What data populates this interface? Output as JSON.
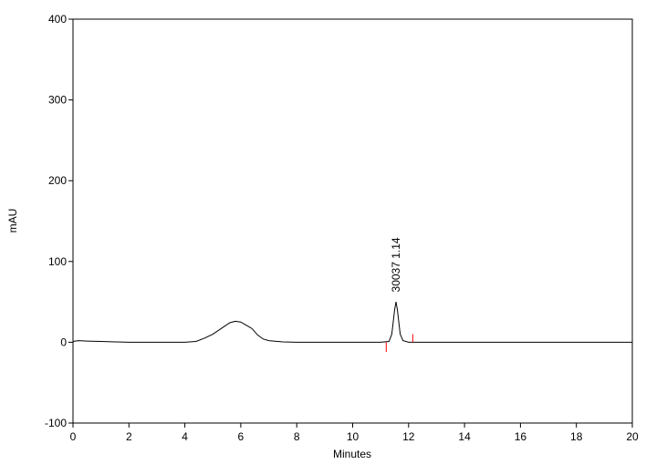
{
  "chart_data": {
    "type": "line",
    "x_label": "Minutes",
    "y_label": "mAU",
    "xlim": [
      0,
      20
    ],
    "xticks": [
      0,
      2,
      4,
      6,
      8,
      10,
      12,
      14,
      16,
      18,
      20
    ],
    "ylim": [
      -100,
      400
    ],
    "yticks": [
      -100,
      0,
      100,
      200,
      300,
      400
    ],
    "grid": false,
    "series": [
      {
        "color": "#000000",
        "x": [
          0,
          0.2,
          0.5,
          1,
          1.5,
          2,
          3,
          4,
          4.4,
          4.7,
          5.0,
          5.3,
          5.6,
          5.8,
          6.0,
          6.2,
          6.4,
          6.6,
          6.8,
          7.0,
          7.5,
          8,
          9,
          10,
          11,
          11.3,
          11.4,
          11.5,
          11.55,
          11.6,
          11.7,
          11.8,
          12,
          12.5,
          13,
          15,
          20
        ],
        "values": [
          1,
          2,
          1.5,
          1,
          0.5,
          0,
          0,
          0,
          1,
          5,
          10,
          17,
          24,
          26,
          25,
          21,
          17,
          9,
          4,
          2,
          0.5,
          0,
          0,
          0,
          0,
          1,
          10,
          40,
          50,
          40,
          10,
          2,
          0,
          0,
          0,
          0,
          0
        ]
      }
    ],
    "peak_markers": {
      "color": "#ff0000",
      "items": [
        {
          "x": 11.2,
          "y1": -12,
          "y2": 0
        },
        {
          "x": 12.15,
          "y1": 0,
          "y2": 10
        }
      ]
    },
    "annotations": [
      {
        "text": "30037 1.14",
        "x": 11.55,
        "y": 62
      }
    ]
  }
}
